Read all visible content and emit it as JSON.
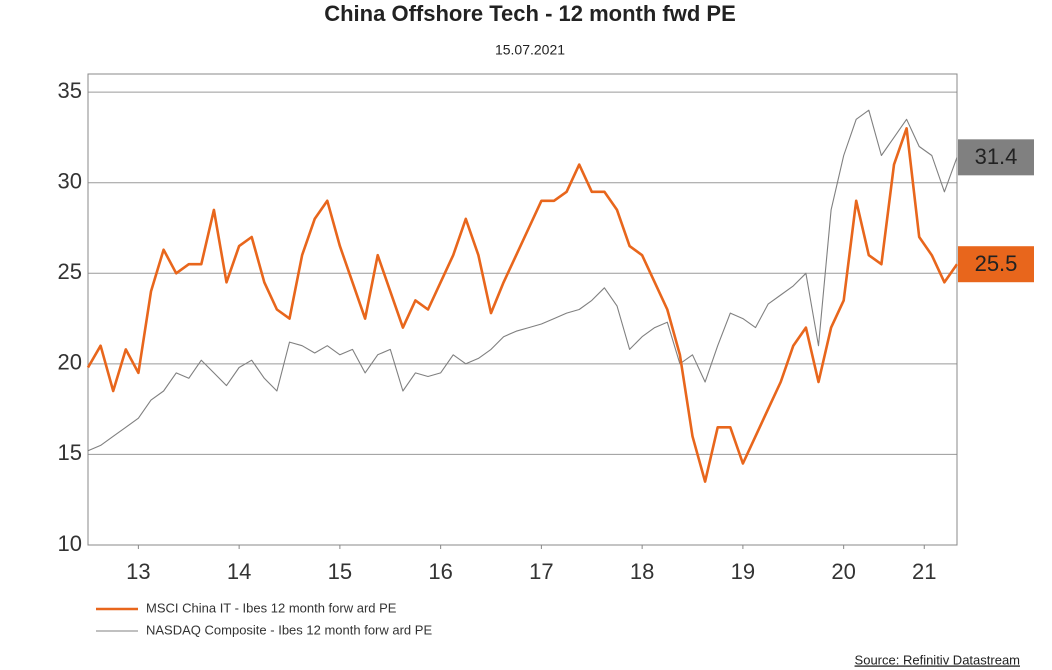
{
  "chart_data": {
    "type": "line",
    "title": "China Offshore Tech - 12 month fwd PE",
    "subtitle": "15.07.2021",
    "source": "Source: Refinitiv Datastream",
    "x": [
      2013,
      2013.125,
      2013.25,
      2013.375,
      2013.5,
      2013.625,
      2013.75,
      2013.875,
      2014,
      2014.125,
      2014.25,
      2014.375,
      2014.5,
      2014.625,
      2014.75,
      2014.875,
      2015,
      2015.125,
      2015.25,
      2015.375,
      2015.5,
      2015.625,
      2015.75,
      2015.875,
      2016,
      2016.125,
      2016.25,
      2016.375,
      2016.5,
      2016.625,
      2016.75,
      2016.875,
      2017,
      2017.125,
      2017.25,
      2017.375,
      2017.5,
      2017.625,
      2017.75,
      2017.875,
      2018,
      2018.125,
      2018.25,
      2018.375,
      2018.5,
      2018.625,
      2018.75,
      2018.875,
      2019,
      2019.125,
      2019.25,
      2019.375,
      2019.5,
      2019.625,
      2019.75,
      2019.875,
      2020,
      2020.125,
      2020.25,
      2020.375,
      2020.5,
      2020.625,
      2020.75,
      2020.875,
      2021,
      2021.125,
      2021.25,
      2021.375,
      2021.5,
      2021.625
    ],
    "series": [
      {
        "name": "MSCI China IT - Ibes 12 month forw ard PE",
        "color": "#e8661c",
        "end_label": "25.5",
        "values": [
          19.8,
          21.0,
          18.5,
          20.8,
          19.5,
          24,
          26.3,
          25,
          25.5,
          25.5,
          28.5,
          24.5,
          26.5,
          27,
          24.5,
          23,
          22.5,
          26,
          28,
          29,
          26.5,
          24.5,
          22.5,
          26,
          24,
          22,
          23.5,
          23,
          24.5,
          26,
          28,
          26,
          22.8,
          24.5,
          26,
          27.5,
          29,
          29,
          29.5,
          31,
          29.5,
          29.5,
          28.5,
          26.5,
          26,
          24.5,
          23,
          20.5,
          16,
          13.5,
          16.5,
          16.5,
          14.5,
          16,
          17.5,
          19,
          21,
          22,
          19,
          22,
          23.5,
          29,
          26,
          25.5,
          31,
          33,
          27,
          26,
          24.5,
          25.5
        ]
      },
      {
        "name": "NASDAQ Composite - Ibes 12 month forw ard PE",
        "color": "#808080",
        "end_label": "31.4",
        "values": [
          15.2,
          15.5,
          16,
          16.5,
          17,
          18,
          18.5,
          19.5,
          19.2,
          20.2,
          19.5,
          18.8,
          19.8,
          20.2,
          19.2,
          18.5,
          21.2,
          21,
          20.6,
          21,
          20.5,
          20.8,
          19.5,
          20.5,
          20.8,
          18.5,
          19.5,
          19.3,
          19.5,
          20.5,
          20,
          20.3,
          20.8,
          21.5,
          21.8,
          22,
          22.2,
          22.5,
          22.8,
          23,
          23.5,
          24.2,
          23.2,
          20.8,
          21.5,
          22,
          22.3,
          20,
          20.5,
          19,
          21,
          22.8,
          22.5,
          22,
          23.3,
          23.8,
          24.3,
          25,
          21,
          28.5,
          31.5,
          33.5,
          34,
          31.5,
          32.5,
          33.5,
          32,
          31.5,
          29.5,
          31.4
        ]
      }
    ],
    "xlim": [
      2013,
      2021.625
    ],
    "xticks": [
      {
        "value": 2013.5,
        "label": "13"
      },
      {
        "value": 2014.5,
        "label": "14"
      },
      {
        "value": 2015.5,
        "label": "15"
      },
      {
        "value": 2016.5,
        "label": "16"
      },
      {
        "value": 2017.5,
        "label": "17"
      },
      {
        "value": 2018.5,
        "label": "18"
      },
      {
        "value": 2019.5,
        "label": "19"
      },
      {
        "value": 2020.5,
        "label": "20"
      },
      {
        "value": 2021.3,
        "label": "21"
      }
    ],
    "ylim": [
      10,
      36
    ],
    "yticks": [
      10,
      15,
      20,
      25,
      30,
      35
    ],
    "grid": true,
    "legend": "bottom-left"
  }
}
